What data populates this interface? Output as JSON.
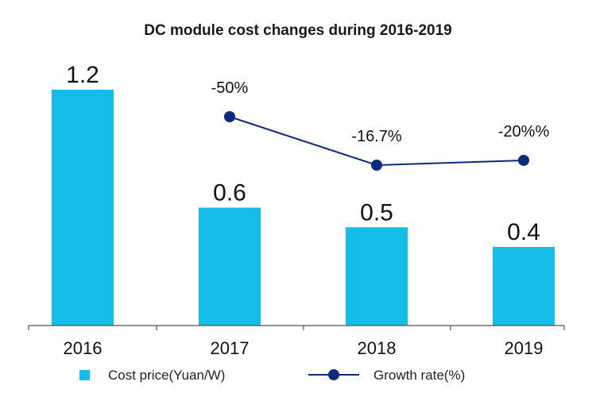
{
  "chart_data": {
    "type": "bar",
    "title": "DC module cost changes during 2016-2019",
    "categories": [
      "2016",
      "2017",
      "2018",
      "2019"
    ],
    "series": [
      {
        "name": "Cost price(Yuan/W)",
        "type": "bar",
        "values": [
          1.2,
          0.6,
          0.5,
          0.4
        ],
        "labels": [
          "1.2",
          "0.6",
          "0.5",
          "0.4"
        ],
        "color": "#14BDE8"
      },
      {
        "name": "Growth rate(%)",
        "type": "line",
        "values": [
          null,
          -50,
          -16.7,
          -20
        ],
        "labels": [
          "",
          "-50%",
          "-16.7%",
          "-20%%"
        ],
        "color": "#0E2A7A"
      }
    ],
    "ylim": [
      0,
      1.2
    ],
    "line_ylim": [
      -50,
      -16.7
    ],
    "grid": false,
    "legend_position": "bottom"
  }
}
